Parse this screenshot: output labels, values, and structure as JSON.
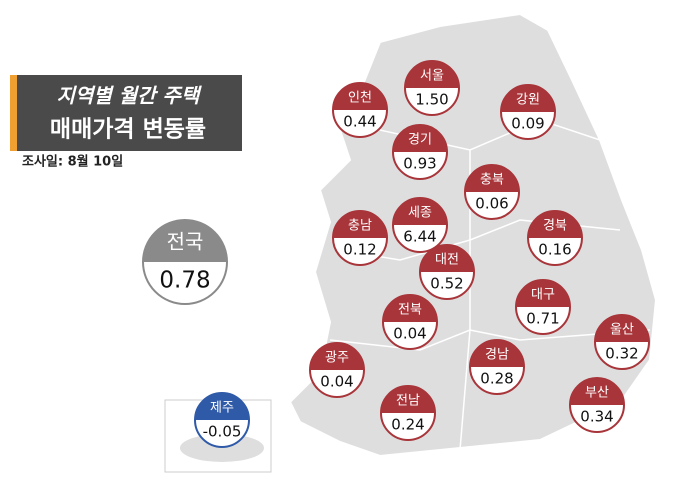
{
  "header": {
    "title_line1": "지역별 월간 주택",
    "title_line2": "매매가격 변동률",
    "date": "조사일: 8월 10일"
  },
  "national": {
    "name": "전국",
    "value": "0.78"
  },
  "regions": [
    {
      "name": "인천",
      "value": "0.44"
    },
    {
      "name": "서울",
      "value": "1.50"
    },
    {
      "name": "강원",
      "value": "0.09"
    },
    {
      "name": "경기",
      "value": "0.93"
    },
    {
      "name": "충북",
      "value": "0.06"
    },
    {
      "name": "세종",
      "value": "6.44"
    },
    {
      "name": "충남",
      "value": "0.12"
    },
    {
      "name": "경북",
      "value": "0.16"
    },
    {
      "name": "대전",
      "value": "0.52"
    },
    {
      "name": "대구",
      "value": "0.71"
    },
    {
      "name": "전북",
      "value": "0.04"
    },
    {
      "name": "울산",
      "value": "0.32"
    },
    {
      "name": "광주",
      "value": "0.04"
    },
    {
      "name": "경남",
      "value": "0.28"
    },
    {
      "name": "부산",
      "value": "0.34"
    },
    {
      "name": "전남",
      "value": "0.24"
    },
    {
      "name": "제주",
      "value": "-0.05"
    }
  ]
}
